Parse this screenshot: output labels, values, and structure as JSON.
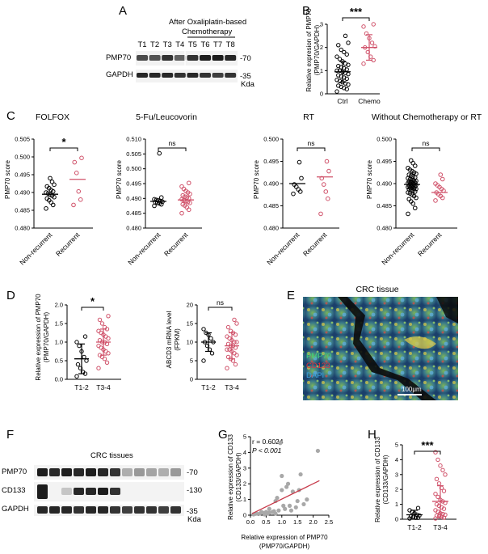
{
  "panels": {
    "A": {
      "label": "A",
      "header": [
        "After Oxaliplatin-based",
        "Chemotherapy"
      ],
      "lanes": [
        "T1",
        "T2",
        "T3",
        "T4",
        "T5",
        "T6",
        "T7",
        "T8"
      ],
      "rows": [
        "PMP70",
        "GAPDH"
      ],
      "markers": [
        "-70",
        "-35"
      ],
      "unit": "Kda",
      "pmp70_intensity": [
        0.75,
        0.7,
        0.85,
        0.65,
        0.85,
        0.95,
        0.95,
        0.9
      ],
      "gapdh_intensity": [
        0.9,
        0.9,
        0.9,
        0.85,
        0.9,
        0.85,
        0.8,
        0.85
      ]
    },
    "B": {
      "label": "B",
      "ylabel": [
        "Relative expresion of PMP70",
        "(PMP70/GAPDH)"
      ],
      "significance": "***",
      "categories": [
        "Ctrl",
        "Chemo"
      ],
      "yticks": [
        "0",
        "1",
        "2",
        "3"
      ]
    },
    "C": {
      "label": "C",
      "ylabel": "PMP70 score",
      "categories": [
        "Non-recurrent",
        "Recurrent"
      ],
      "subplots": [
        {
          "title": "FOLFOX",
          "sig": "*",
          "yticks": [
            "0.480",
            "0.485",
            "0.490",
            "0.495",
            "0.500",
            "0.505"
          ]
        },
        {
          "title": "5-Fu/Leucovorin",
          "sig": "ns",
          "yticks": [
            "0.480",
            "0.485",
            "0.490",
            "0.495",
            "0.500",
            "0.505",
            "0.510"
          ]
        },
        {
          "title": "RT",
          "sig": "ns",
          "yticks": [
            "0.480",
            "0.485",
            "0.490",
            "0.495",
            "0.500"
          ]
        },
        {
          "title": "Without Chemotherapy or RT",
          "sig": "ns",
          "yticks": [
            "0.480",
            "0.485",
            "0.490",
            "0.495",
            "0.500"
          ]
        }
      ]
    },
    "D": {
      "label": "D",
      "left": {
        "ylabel": [
          "Relative expression of PMP70",
          "(PMP70/GAPDH)"
        ],
        "sig": "*",
        "yticks": [
          "0.0",
          "0.5",
          "1.0",
          "1.5",
          "2.0"
        ],
        "categories": [
          "T1-2",
          "T3-4"
        ]
      },
      "right": {
        "ylabel": [
          "ABCD3 mRNA level",
          "(FPKM)"
        ],
        "sig": "ns",
        "yticks": [
          "0",
          "5",
          "10",
          "15",
          "20"
        ],
        "categories": [
          "T1-2",
          "T3-4"
        ]
      }
    },
    "E": {
      "label": "E",
      "title": "CRC tissue",
      "legend": [
        "PMP70",
        "CD133",
        "DAPI"
      ],
      "legend_colors": [
        "#3fd17a",
        "#e8333a",
        "#3aa0e0"
      ],
      "scalebar": "100μm"
    },
    "F": {
      "label": "F",
      "title": "CRC tissues",
      "rows": [
        "PMP70",
        "CD133",
        "GAPDH"
      ],
      "markers": [
        "-70",
        "-130",
        "-35"
      ],
      "unit": "Kda"
    },
    "G": {
      "label": "G",
      "stat_r": "r = 0.6024",
      "stat_p": "P < 0.001",
      "ylabel": [
        "Relative expression of CD133",
        "(CD133/GAPDH)"
      ],
      "xlabel": [
        "Relative expression of PMP70",
        "(PMP70/GAPDH)"
      ],
      "yticks": [
        "0",
        "1",
        "2",
        "3",
        "4",
        "5"
      ],
      "xticks": [
        "0.0",
        "0.5",
        "1.0",
        "1.5",
        "2.0",
        "2.5"
      ]
    },
    "H": {
      "label": "H",
      "ylabel": [
        "Relative expression of CD133",
        "(CD133/GAPDH)"
      ],
      "sig": "***",
      "yticks": [
        "0",
        "1",
        "2",
        "3",
        "4",
        "5"
      ],
      "categories": [
        "T1-2",
        "T3-4"
      ]
    }
  },
  "chart_data": [
    {
      "id": "B",
      "type": "scatter",
      "ylim": [
        0,
        3
      ],
      "series": [
        {
          "name": "Ctrl",
          "color": "#000000",
          "mean": 0.95,
          "sd": 0.45,
          "values": [
            0.1,
            0.2,
            0.25,
            0.3,
            0.35,
            0.4,
            0.45,
            0.5,
            0.55,
            0.6,
            0.65,
            0.7,
            0.75,
            0.8,
            0.85,
            0.9,
            0.95,
            1.0,
            1.0,
            1.05,
            1.1,
            1.15,
            1.2,
            1.25,
            1.3,
            1.4,
            1.5,
            1.6,
            1.7,
            1.8,
            1.9,
            2.1,
            2.2,
            2.5
          ]
        },
        {
          "name": "Chemo",
          "color": "#d0526a",
          "mean": 2.0,
          "sd": 0.55,
          "values": [
            1.3,
            1.45,
            1.6,
            1.8,
            2.0,
            2.05,
            2.2,
            2.4,
            2.6,
            2.9,
            3.0
          ]
        }
      ]
    },
    {
      "id": "C1",
      "type": "scatter",
      "ylim": [
        0.48,
        0.505
      ],
      "series": [
        {
          "name": "Non-recurrent",
          "color": "#000000",
          "mean": 0.4895,
          "values": [
            0.4855,
            0.4865,
            0.4872,
            0.4878,
            0.4883,
            0.4887,
            0.4891,
            0.4894,
            0.4897,
            0.49,
            0.4903,
            0.4907,
            0.4912,
            0.4917,
            0.4922,
            0.493,
            0.494
          ]
        },
        {
          "name": "Recurrent",
          "color": "#d0526a",
          "mean": 0.4937,
          "values": [
            0.4865,
            0.488,
            0.4903,
            0.4955,
            0.4985,
            0.4997
          ]
        }
      ]
    },
    {
      "id": "C2",
      "type": "scatter",
      "ylim": [
        0.48,
        0.51
      ],
      "series": [
        {
          "name": "Non-recurrent",
          "color": "#000000",
          "mean": 0.489,
          "values": [
            0.4875,
            0.488,
            0.4883,
            0.4885,
            0.4887,
            0.4889,
            0.4891,
            0.4893,
            0.4895,
            0.4897,
            0.4903,
            0.5052
          ]
        },
        {
          "name": "Recurrent",
          "color": "#d0526a",
          "mean": 0.4895,
          "values": [
            0.485,
            0.4862,
            0.487,
            0.4876,
            0.488,
            0.4885,
            0.4888,
            0.4891,
            0.4894,
            0.4897,
            0.49,
            0.4903,
            0.4906,
            0.491,
            0.4915,
            0.492,
            0.4925,
            0.4932,
            0.494,
            0.4952
          ]
        }
      ]
    },
    {
      "id": "C3",
      "type": "scatter",
      "ylim": [
        0.48,
        0.5
      ],
      "series": [
        {
          "name": "Non-recurrent",
          "color": "#000000",
          "mean": 0.49,
          "values": [
            0.4877,
            0.4882,
            0.4887,
            0.4893,
            0.4898,
            0.4912,
            0.4948
          ]
        },
        {
          "name": "Recurrent",
          "color": "#d0526a",
          "mean": 0.4915,
          "values": [
            0.4832,
            0.4866,
            0.4882,
            0.4898,
            0.4912,
            0.4928,
            0.495
          ]
        }
      ]
    },
    {
      "id": "C4",
      "type": "scatter",
      "ylim": [
        0.48,
        0.5
      ],
      "series": [
        {
          "name": "Non-recurrent",
          "color": "#000000",
          "mean": 0.4898,
          "values": [
            0.4832,
            0.4845,
            0.4855,
            0.486,
            0.4865,
            0.4868,
            0.4872,
            0.4875,
            0.4878,
            0.488,
            0.4882,
            0.4884,
            0.4886,
            0.4887,
            0.4888,
            0.4889,
            0.489,
            0.4891,
            0.4892,
            0.4893,
            0.4894,
            0.4895,
            0.4896,
            0.4897,
            0.4898,
            0.4899,
            0.49,
            0.4901,
            0.4902,
            0.4903,
            0.4904,
            0.4905,
            0.4906,
            0.4907,
            0.4908,
            0.491,
            0.4912,
            0.4914,
            0.4916,
            0.4918,
            0.492,
            0.4922,
            0.4925,
            0.4928,
            0.4931,
            0.4935,
            0.494,
            0.4946,
            0.4952
          ]
        },
        {
          "name": "Recurrent",
          "color": "#d0526a",
          "mean": 0.488,
          "values": [
            0.4862,
            0.4868,
            0.4872,
            0.4876,
            0.488,
            0.4884,
            0.4888,
            0.4892,
            0.4896,
            0.49,
            0.491,
            0.492
          ]
        }
      ]
    },
    {
      "id": "D1",
      "type": "scatter",
      "ylim": [
        0,
        2
      ],
      "series": [
        {
          "name": "T1-2",
          "color": "#000000",
          "mean": 0.55,
          "sd": 0.4,
          "values": [
            0.08,
            0.15,
            0.2,
            0.3,
            0.4,
            0.5,
            0.6,
            0.75,
            0.9,
            1.0,
            1.15
          ]
        },
        {
          "name": "T3-4",
          "color": "#d0526a",
          "mean": 1.0,
          "sd": 0.35,
          "values": [
            0.3,
            0.45,
            0.55,
            0.6,
            0.65,
            0.7,
            0.75,
            0.8,
            0.85,
            0.9,
            0.95,
            1.0,
            1.0,
            1.05,
            1.1,
            1.15,
            1.2,
            1.25,
            1.3,
            1.35,
            1.4,
            1.5,
            1.6,
            1.7
          ]
        }
      ]
    },
    {
      "id": "D2",
      "type": "scatter",
      "ylim": [
        0,
        20
      ],
      "series": [
        {
          "name": "T1-2",
          "color": "#000000",
          "mean": 10,
          "sd": 2.5,
          "values": [
            5,
            7,
            8,
            9,
            10,
            10,
            11,
            12,
            12.5,
            13.5
          ]
        },
        {
          "name": "T3-4",
          "color": "#d0526a",
          "mean": 9,
          "sd": 3.5,
          "values": [
            3,
            4,
            5,
            5.5,
            6,
            6.5,
            7,
            7.5,
            8,
            8,
            8.5,
            9,
            9,
            9.5,
            10,
            10,
            10.5,
            11,
            11.5,
            12,
            12.5,
            13,
            14,
            15,
            16
          ]
        }
      ]
    },
    {
      "id": "G",
      "type": "scatter",
      "xlim": [
        0,
        2.5
      ],
      "ylim": [
        0,
        5
      ],
      "fit": {
        "x": [
          0.05,
          2.2
        ],
        "y": [
          0.1,
          2.2
        ]
      },
      "points": [
        [
          0.1,
          0.05
        ],
        [
          0.2,
          0.1
        ],
        [
          0.3,
          0.1
        ],
        [
          0.35,
          0.2
        ],
        [
          0.4,
          0.15
        ],
        [
          0.45,
          0.05
        ],
        [
          0.5,
          0.2
        ],
        [
          0.55,
          0.1
        ],
        [
          0.6,
          0.15
        ],
        [
          0.6,
          0.4
        ],
        [
          0.7,
          0.2
        ],
        [
          0.75,
          0.25
        ],
        [
          0.8,
          0.1
        ],
        [
          0.8,
          0.9
        ],
        [
          0.85,
          1.1
        ],
        [
          0.9,
          0.3
        ],
        [
          0.95,
          4.6
        ],
        [
          1.0,
          2.5
        ],
        [
          1.0,
          1.6
        ],
        [
          1.05,
          0.6
        ],
        [
          1.1,
          0.4
        ],
        [
          1.15,
          1.8
        ],
        [
          1.2,
          2.0
        ],
        [
          1.25,
          0.6
        ],
        [
          1.3,
          0.3
        ],
        [
          1.35,
          1.5
        ],
        [
          1.45,
          0.5
        ],
        [
          1.5,
          0.9
        ],
        [
          1.55,
          1.6
        ],
        [
          1.6,
          2.6
        ],
        [
          1.7,
          0.7
        ],
        [
          1.8,
          1.0
        ],
        [
          2.15,
          4.1
        ]
      ]
    },
    {
      "id": "H",
      "type": "scatter",
      "ylim": [
        0,
        5
      ],
      "series": [
        {
          "name": "T1-2",
          "color": "#000000",
          "mean": 0.3,
          "sd": 0.3,
          "values": [
            0.05,
            0.1,
            0.1,
            0.15,
            0.2,
            0.25,
            0.3,
            0.4,
            0.5,
            0.6,
            0.75
          ]
        },
        {
          "name": "T3-4",
          "color": "#d0526a",
          "mean": 1.2,
          "sd": 1.05,
          "values": [
            0.05,
            0.1,
            0.15,
            0.2,
            0.25,
            0.3,
            0.35,
            0.4,
            0.5,
            0.6,
            0.7,
            0.8,
            0.9,
            1.0,
            1.1,
            1.2,
            1.3,
            1.5,
            1.7,
            1.9,
            2.1,
            2.4,
            2.7,
            3.0,
            3.3,
            3.6,
            4.0,
            4.5
          ]
        }
      ]
    }
  ]
}
